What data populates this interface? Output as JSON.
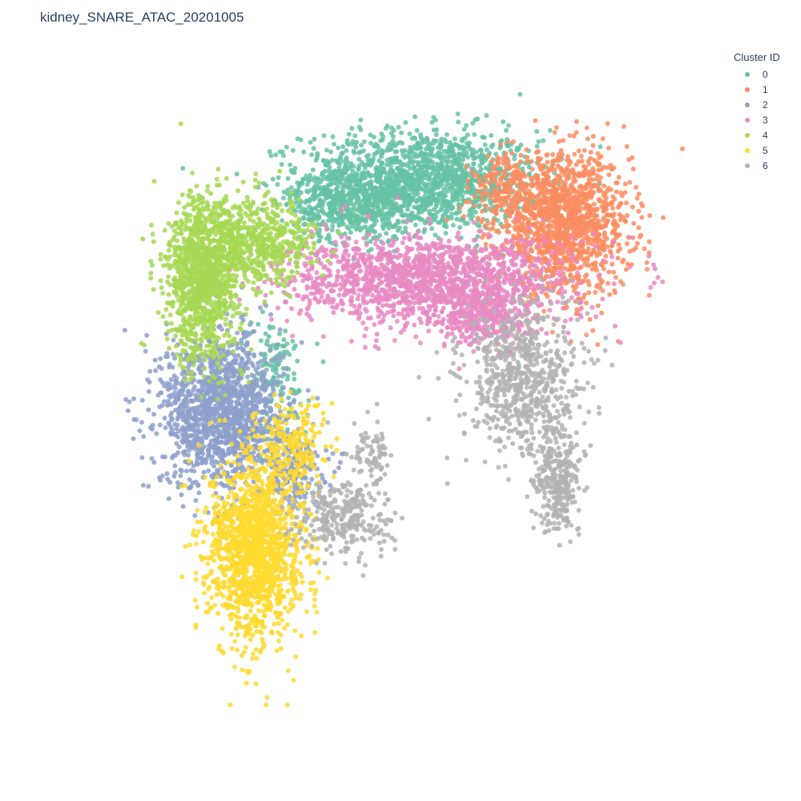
{
  "title": "kidney_SNARE_ATAC_20201005",
  "legend": {
    "title": "Cluster ID",
    "items": [
      {
        "label": "0",
        "color": "#66c2a5"
      },
      {
        "label": "1",
        "color": "#fc8d62"
      },
      {
        "label": "2",
        "color": "#8da0cb"
      },
      {
        "label": "3",
        "color": "#e78ac3"
      },
      {
        "label": "4",
        "color": "#a6d854"
      },
      {
        "label": "5",
        "color": "#ffd92f"
      },
      {
        "label": "6",
        "color": "#b3b3b3"
      }
    ]
  },
  "chart_data": {
    "type": "scatter",
    "title": "kidney_SNARE_ATAC_20201005",
    "xlabel": "",
    "ylabel": "",
    "grid": false,
    "axes_visible": false,
    "legend_placement": "top-right",
    "xlim": [
      0,
      100
    ],
    "ylim": [
      0,
      100
    ],
    "series": [
      {
        "name": "0",
        "color": "#66c2a5",
        "clusters": [
          {
            "cx": 55,
            "cy": 84,
            "sx": 10,
            "sy": 4,
            "n": 1500
          },
          {
            "cx": 43,
            "cy": 80,
            "sx": 5,
            "sy": 3,
            "n": 500
          },
          {
            "cx": 30,
            "cy": 52,
            "sx": 3,
            "sy": 5,
            "n": 160
          }
        ]
      },
      {
        "name": "1",
        "color": "#fc8d62",
        "clusters": [
          {
            "cx": 79,
            "cy": 77,
            "sx": 5.5,
            "sy": 5.5,
            "n": 1400
          },
          {
            "cx": 70,
            "cy": 82,
            "sx": 3,
            "sy": 3,
            "n": 200
          }
        ]
      },
      {
        "name": "2",
        "color": "#8da0cb",
        "clusters": [
          {
            "cx": 21,
            "cy": 47,
            "sx": 5,
            "sy": 6,
            "n": 1400
          },
          {
            "cx": 33,
            "cy": 38,
            "sx": 3,
            "sy": 3,
            "n": 200
          }
        ]
      },
      {
        "name": "3",
        "color": "#e78ac3",
        "clusters": [
          {
            "cx": 56,
            "cy": 68,
            "sx": 12,
            "sy": 3.5,
            "n": 1600
          },
          {
            "cx": 65,
            "cy": 62,
            "sx": 4,
            "sy": 2.5,
            "n": 300
          }
        ]
      },
      {
        "name": "4",
        "color": "#a6d854",
        "clusters": [
          {
            "cx": 18,
            "cy": 68,
            "sx": 3.2,
            "sy": 6.5,
            "n": 1100
          },
          {
            "cx": 27,
            "cy": 74,
            "sx": 5,
            "sy": 3.5,
            "n": 600
          }
        ]
      },
      {
        "name": "5",
        "color": "#ffd92f",
        "clusters": [
          {
            "cx": 27,
            "cy": 25,
            "sx": 4,
            "sy": 7,
            "n": 1500
          },
          {
            "cx": 33,
            "cy": 42,
            "sx": 3,
            "sy": 4,
            "n": 200
          }
        ]
      },
      {
        "name": "6",
        "color": "#b3b3b3",
        "clusters": [
          {
            "cx": 72,
            "cy": 52,
            "sx": 5,
            "sy": 6,
            "n": 700
          },
          {
            "cx": 78,
            "cy": 36,
            "sx": 2,
            "sy": 4,
            "n": 300
          },
          {
            "cx": 42,
            "cy": 30,
            "sx": 4,
            "sy": 3,
            "n": 300
          },
          {
            "cx": 46,
            "cy": 40,
            "sx": 2,
            "sy": 2.5,
            "n": 80
          }
        ]
      }
    ]
  }
}
